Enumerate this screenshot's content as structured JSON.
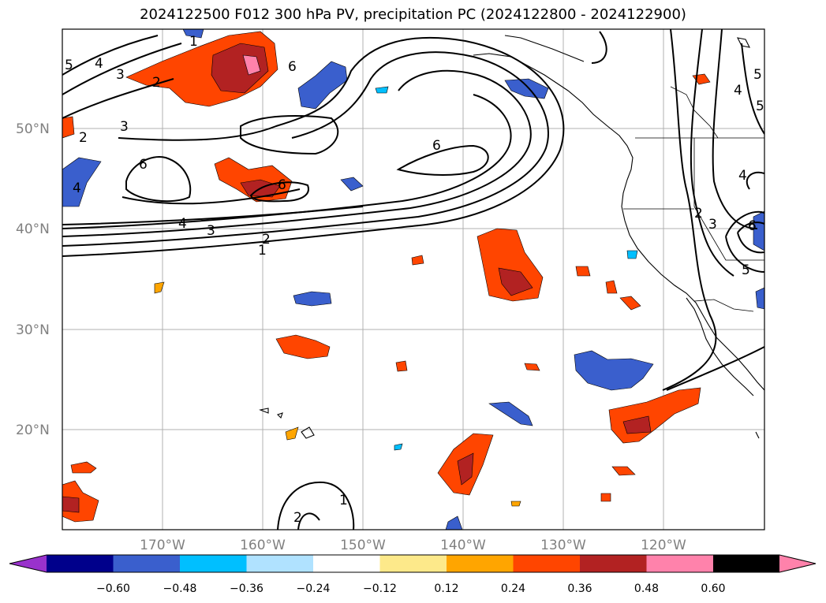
{
  "title": "2024122500 F012 300 hPa PV, precipitation PC (2024122800 - 2024122900)",
  "map": {
    "lat_labels": [
      "50°N",
      "40°N",
      "30°N",
      "20°N"
    ],
    "lon_labels": [
      "170°W",
      "160°W",
      "150°W",
      "140°W",
      "130°W",
      "120°W"
    ],
    "contour_labels": [
      "1",
      "2",
      "3",
      "4",
      "5",
      "6"
    ]
  },
  "colorbar": {
    "ticks": [
      "−0.60",
      "−0.48",
      "−0.36",
      "−0.24",
      "−0.12",
      "0.12",
      "0.24",
      "0.36",
      "0.48",
      "0.60"
    ],
    "colors": [
      "#9932cc",
      "#00008b",
      "#3a5fcd",
      "#00bfff",
      "#b0e2ff",
      "#ffffff",
      "#fde98a",
      "#ffa500",
      "#ff4500",
      "#b22222",
      "#ff82ab"
    ]
  }
}
